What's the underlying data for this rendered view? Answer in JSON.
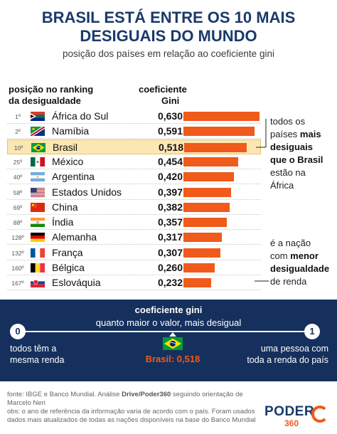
{
  "title_line1": "BRASIL ESTÁ ENTRE OS 10 MAIS",
  "title_line2": "DESIGUAIS DO MUNDO",
  "subtitle": "posição dos países em relação ao coeficiente gini",
  "header_rank_l1": "posição no ranking",
  "header_rank_l2": "da desigualdade",
  "header_gini_l1": "coeficiente",
  "header_gini_l2": "Gini",
  "chart_data": {
    "type": "bar",
    "orientation": "horizontal",
    "xlim": [
      0,
      0.63
    ],
    "rows": [
      {
        "rank": "1º",
        "country": "África do Sul",
        "value": 0.63,
        "label": "0,630",
        "flag": "south-africa"
      },
      {
        "rank": "2º",
        "country": "Namíbia",
        "value": 0.591,
        "label": "0,591",
        "flag": "namibia"
      },
      {
        "rank": "10º",
        "country": "Brasil",
        "value": 0.518,
        "label": "0,518",
        "flag": "brazil",
        "highlight": true
      },
      {
        "rank": "25º",
        "country": "México",
        "value": 0.454,
        "label": "0,454",
        "flag": "mexico"
      },
      {
        "rank": "40º",
        "country": "Argentina",
        "value": 0.42,
        "label": "0,420",
        "flag": "argentina"
      },
      {
        "rank": "58º",
        "country": "Estados Unidos",
        "value": 0.397,
        "label": "0,397",
        "flag": "usa"
      },
      {
        "rank": "69º",
        "country": "China",
        "value": 0.382,
        "label": "0,382",
        "flag": "china"
      },
      {
        "rank": "88º",
        "country": "Índia",
        "value": 0.357,
        "label": "0,357",
        "flag": "india"
      },
      {
        "rank": "128º",
        "country": "Alemanha",
        "value": 0.317,
        "label": "0,317",
        "flag": "germany"
      },
      {
        "rank": "132º",
        "country": "França",
        "value": 0.307,
        "label": "0,307",
        "flag": "france"
      },
      {
        "rank": "160º",
        "country": "Bélgica",
        "value": 0.26,
        "label": "0,260",
        "flag": "belgium"
      },
      {
        "rank": "167º",
        "country": "Eslováquia",
        "value": 0.232,
        "label": "0,232",
        "flag": "slovakia"
      }
    ],
    "bar_color": "#f05a1a",
    "highlight_color": "#fbe7b4"
  },
  "note_top": {
    "l1": "todos os",
    "l2a": "países ",
    "l2b": "mais",
    "l3": "desiguais",
    "l4": "que o Brasil",
    "l5": "estão na",
    "l6": "África"
  },
  "note_bottom": {
    "l1": "é a nação",
    "l2a": "com ",
    "l2b": "menor",
    "l3": "desigualdade",
    "l4": "de renda"
  },
  "scale": {
    "title": "coeficiente gini",
    "subtitle": "quanto maior o valor, mais desigual",
    "min_label": "0",
    "max_label": "1",
    "min_desc_l1": "todos têm a",
    "min_desc_l2": "mesma renda",
    "max_desc_l1": "uma pessoa com",
    "max_desc_l2": "toda a renda do país",
    "marker_value": 0.518,
    "marker_label": "Brasil: 0,518",
    "panel_color": "#15305d"
  },
  "footer": {
    "l1a": "fonte: IBGE e Banco Mundial. Análise ",
    "l1b": "Drive/Poder360",
    "l1c": " seguindo orientação de Marcelo Neri",
    "l2": "obs: o ano de referência da informação varia de acordo com o país. Foram usados",
    "l3": "dados mais atualizados de todas as nações disponíveis na base do Banco Mundial"
  },
  "logo": {
    "word": "PODER",
    "number": "360"
  }
}
